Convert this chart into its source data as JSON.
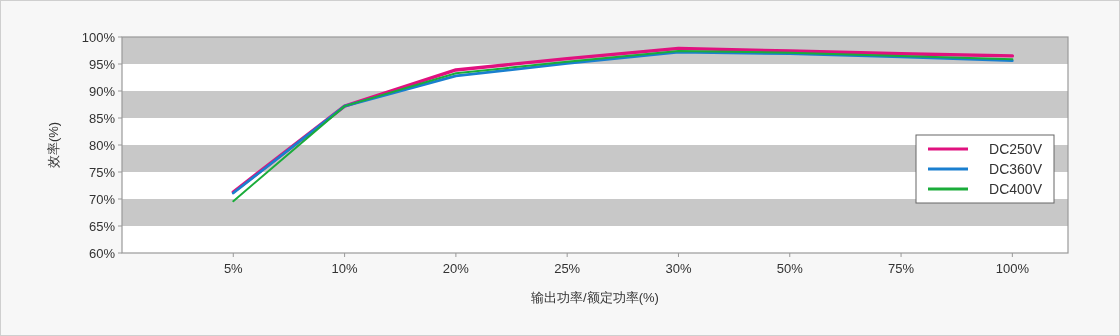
{
  "chart_data": {
    "type": "line",
    "xlabel": "输出功率/额定功率(%)",
    "ylabel": "效率(%)",
    "categories": [
      "5%",
      "10%",
      "20%",
      "25%",
      "30%",
      "50%",
      "75%",
      "100%"
    ],
    "series": [
      {
        "name": "DC250V",
        "color": "#e0117f",
        "values": [
          71.3,
          87.2,
          93.9,
          96.0,
          97.9,
          97.4,
          96.9,
          96.5
        ]
      },
      {
        "name": "DC360V",
        "color": "#1a7fcf",
        "values": [
          71.1,
          87.2,
          92.8,
          95.1,
          97.2,
          96.9,
          96.3,
          95.6
        ]
      },
      {
        "name": "DC400V",
        "color": "#1aac3a",
        "values": [
          69.6,
          87.2,
          93.3,
          95.4,
          97.4,
          97.1,
          96.5,
          95.9
        ]
      }
    ],
    "ylim": [
      60,
      100
    ],
    "yticks": [
      {
        "value": 60,
        "label": "60%"
      },
      {
        "value": 65,
        "label": "65%"
      },
      {
        "value": 70,
        "label": "70%"
      },
      {
        "value": 75,
        "label": "75%"
      },
      {
        "value": 80,
        "label": "80%"
      },
      {
        "value": 85,
        "label": "85%"
      },
      {
        "value": 90,
        "label": "90%"
      },
      {
        "value": 95,
        "label": "95%"
      },
      {
        "value": 100,
        "label": "100%"
      }
    ],
    "bands": [
      {
        "axis": "y",
        "from": 95,
        "to": 100,
        "color": "#c8c8c8"
      },
      {
        "axis": "y",
        "from": 85,
        "to": 90,
        "color": "#c8c8c8"
      },
      {
        "axis": "y",
        "from": 75,
        "to": 80,
        "color": "#c8c8c8"
      },
      {
        "axis": "y",
        "from": 65,
        "to": 70,
        "color": "#c8c8c8"
      }
    ],
    "legend": "right",
    "grid": false,
    "marker": "none",
    "line_style": "solid"
  }
}
